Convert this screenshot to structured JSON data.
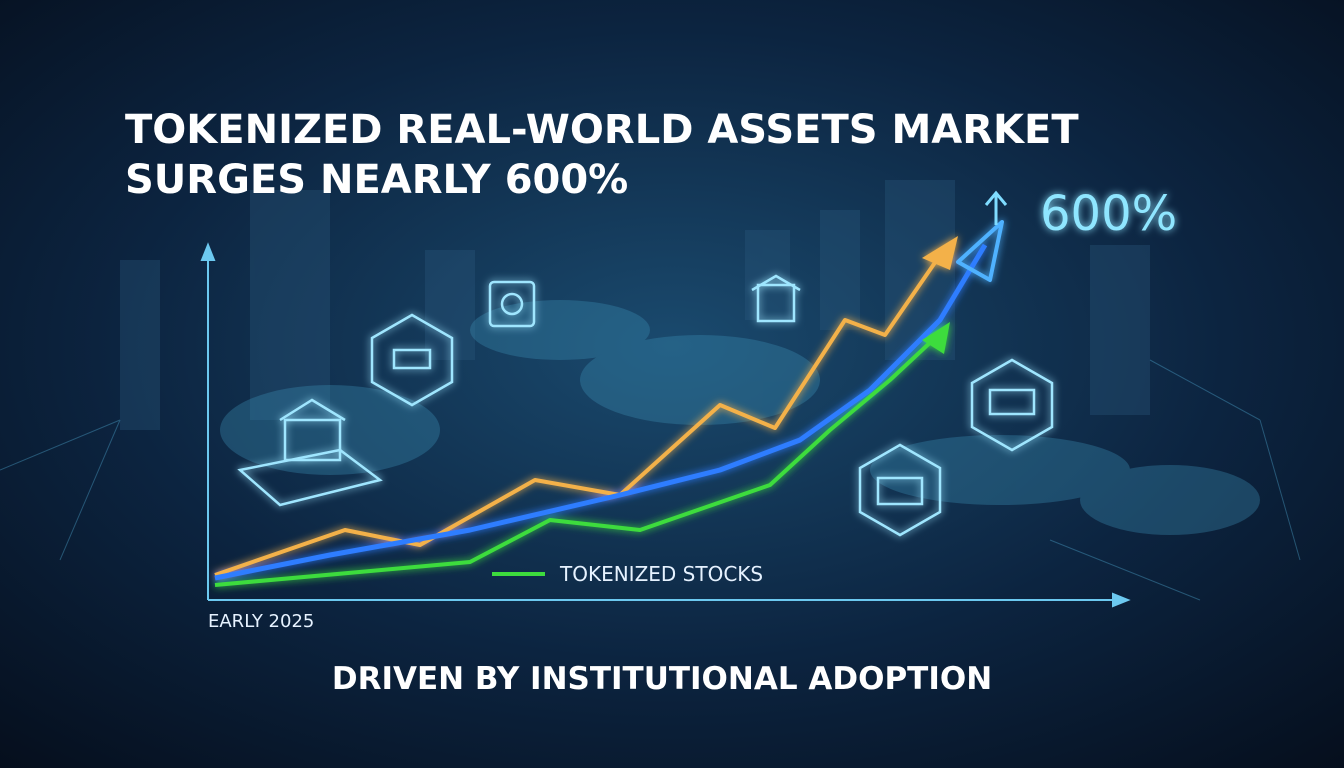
{
  "header": {
    "title_lines": [
      "TOKENIZED REAL-WORLD ASSETS MARKET",
      "SURGES NEARLY 600%"
    ]
  },
  "callout": {
    "label": "600%"
  },
  "legend": {
    "label": "TOKENIZED STOCKS"
  },
  "axis": {
    "x_label": "EARLY 2025"
  },
  "footer": {
    "text": "DRIVEN BY INSTITUTIONAL ADOPTION"
  }
}
